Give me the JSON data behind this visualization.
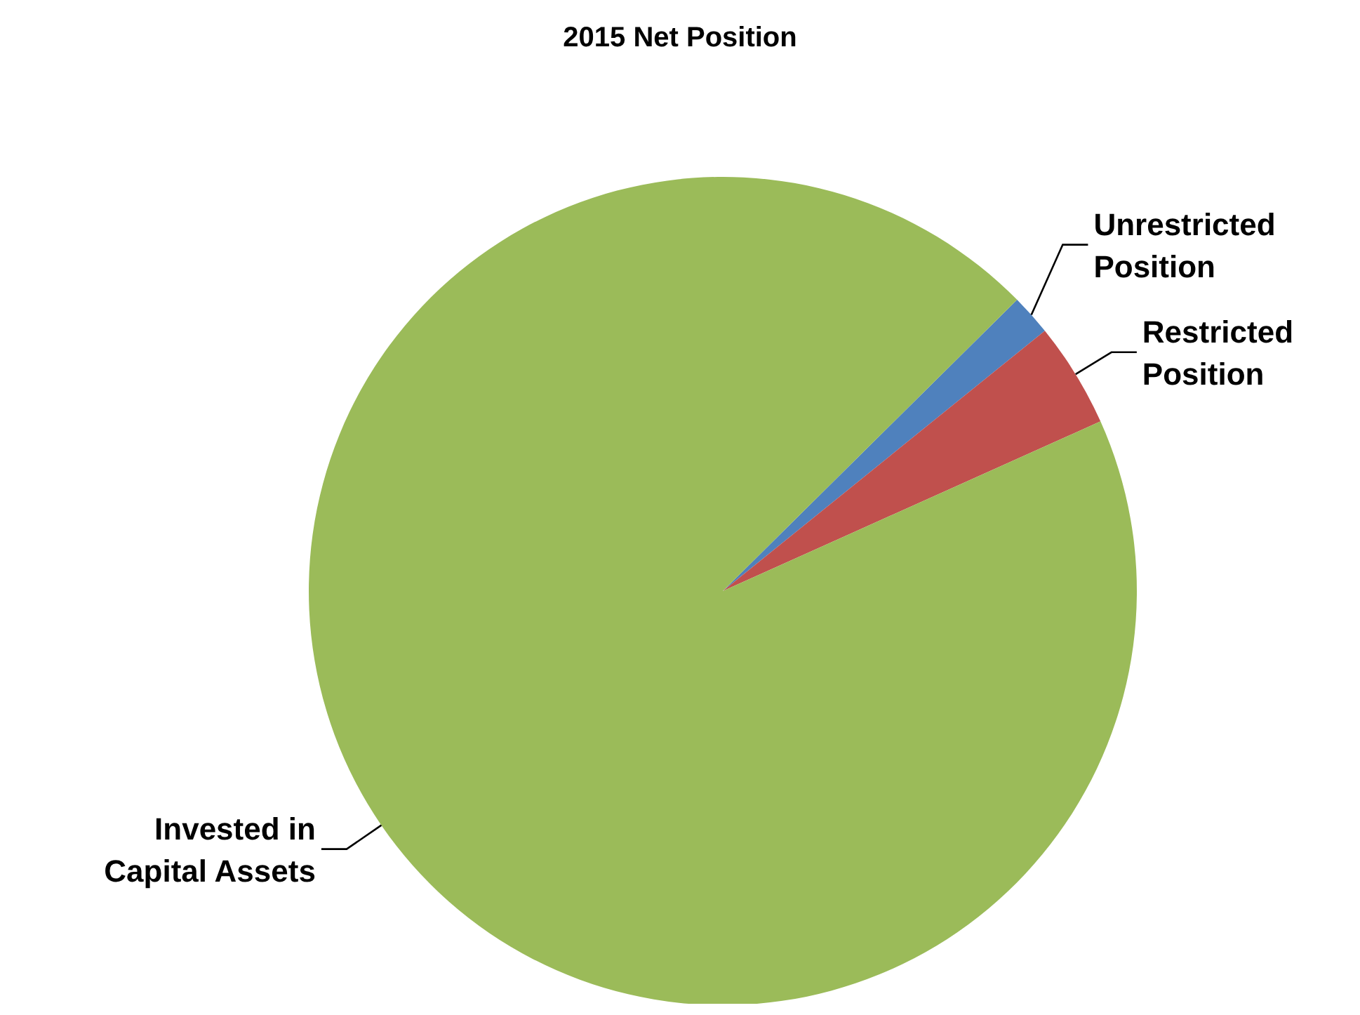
{
  "chart_data": {
    "type": "pie",
    "title": "2015 Net Position",
    "categories": [
      "Unrestricted Position",
      "Restricted Position",
      "Invested in Capital Assets"
    ],
    "values": [
      1.6,
      4.1,
      94.3
    ],
    "colors": [
      "#4f81bd",
      "#c0504d",
      "#9bbb59"
    ]
  }
}
